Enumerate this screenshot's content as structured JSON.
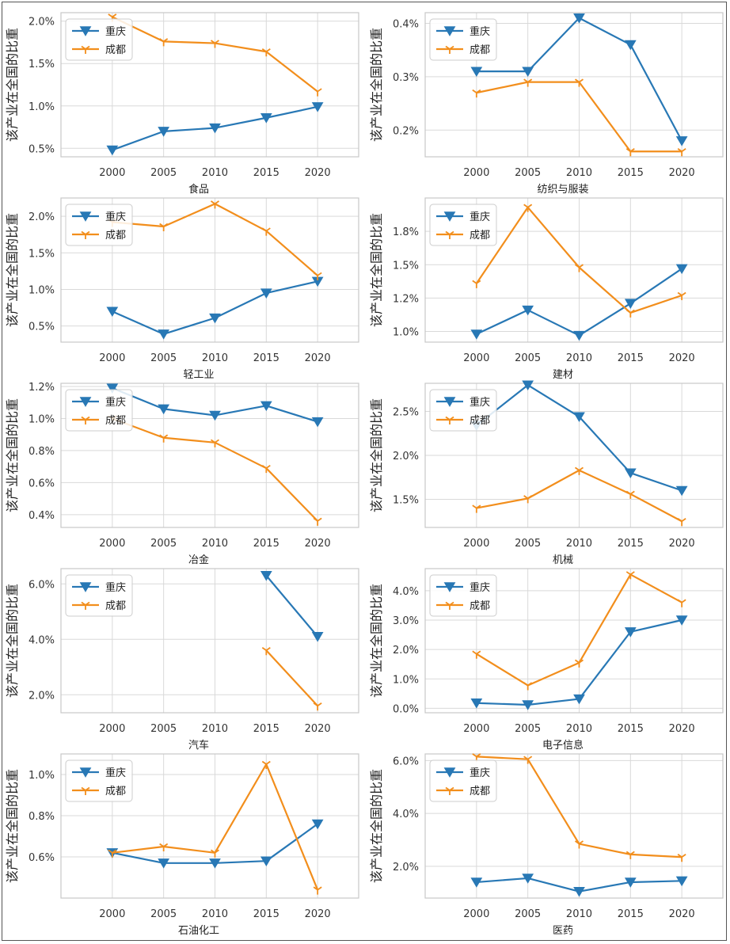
{
  "colors": {
    "chongqing": "#2878b5",
    "chengdu": "#f28e1c",
    "grid": "#d9d9d9",
    "frame": "#c8c8c8"
  },
  "chart_data": [
    {
      "type": "line",
      "title": "",
      "xlabel": "食品",
      "ylabel": "该产业在全国的比重",
      "x": [
        2000,
        2005,
        2010,
        2015,
        2020
      ],
      "ylim": [
        0.4,
        2.1
      ],
      "yticks": [
        0.5,
        1.0,
        1.5,
        2.0
      ],
      "ytick_labels": [
        "0.5%",
        "1.0%",
        "1.5%",
        "2.0%"
      ],
      "legend": "upper-left",
      "series": [
        {
          "name": "重庆",
          "values": [
            0.48,
            0.7,
            0.74,
            0.86,
            0.99
          ]
        },
        {
          "name": "成都",
          "values": [
            2.05,
            1.76,
            1.74,
            1.64,
            1.17
          ]
        }
      ]
    },
    {
      "type": "line",
      "title": "",
      "xlabel": "纺织与服装",
      "ylabel": "该产业在全国的比重",
      "x": [
        2000,
        2005,
        2010,
        2015,
        2020
      ],
      "ylim": [
        0.15,
        0.42
      ],
      "yticks": [
        0.2,
        0.3,
        0.4
      ],
      "ytick_labels": [
        "0.2%",
        "0.3%",
        "0.4%"
      ],
      "legend": "upper-left",
      "series": [
        {
          "name": "重庆",
          "values": [
            0.31,
            0.31,
            0.41,
            0.36,
            0.18
          ]
        },
        {
          "name": "成都",
          "values": [
            0.27,
            0.29,
            0.29,
            0.16,
            0.16
          ]
        }
      ]
    },
    {
      "type": "line",
      "title": "",
      "xlabel": "轻工业",
      "ylabel": "该产业在全国的比重",
      "x": [
        2000,
        2005,
        2010,
        2015,
        2020
      ],
      "ylim": [
        0.28,
        2.25
      ],
      "yticks": [
        0.5,
        1.0,
        1.5,
        2.0
      ],
      "ytick_labels": [
        "0.5%",
        "1.0%",
        "1.5%",
        "2.0%"
      ],
      "legend": "upper-left",
      "series": [
        {
          "name": "重庆",
          "values": [
            0.7,
            0.39,
            0.61,
            0.95,
            1.11
          ]
        },
        {
          "name": "成都",
          "values": [
            1.92,
            1.86,
            2.17,
            1.8,
            1.19
          ]
        }
      ]
    },
    {
      "type": "line",
      "title": "",
      "xlabel": "建材",
      "ylabel": "该产业在全国的比重",
      "x": [
        2000,
        2005,
        2010,
        2015,
        2020
      ],
      "ylim": [
        0.92,
        2.0
      ],
      "yticks": [
        1.0,
        1.25,
        1.5,
        1.75
      ],
      "ytick_labels": [
        "1.0%",
        "1.2%",
        "1.5%",
        "1.8%"
      ],
      "legend": "upper-left",
      "series": [
        {
          "name": "重庆",
          "values": [
            0.98,
            1.16,
            0.97,
            1.21,
            1.47
          ]
        },
        {
          "name": "成都",
          "values": [
            1.36,
            1.93,
            1.48,
            1.14,
            1.27
          ]
        }
      ]
    },
    {
      "type": "line",
      "title": "",
      "xlabel": "冶金",
      "ylabel": "该产业在全国的比重",
      "x": [
        2000,
        2005,
        2010,
        2015,
        2020
      ],
      "ylim": [
        0.32,
        1.22
      ],
      "yticks": [
        0.4,
        0.6,
        0.8,
        1.0,
        1.2
      ],
      "ytick_labels": [
        "0.4%",
        "0.6%",
        "0.8%",
        "1.0%",
        "1.2%"
      ],
      "legend": "upper-left",
      "series": [
        {
          "name": "重庆",
          "values": [
            1.19,
            1.06,
            1.02,
            1.08,
            0.98
          ]
        },
        {
          "name": "成都",
          "values": [
            1.0,
            0.88,
            0.85,
            0.69,
            0.36
          ]
        }
      ]
    },
    {
      "type": "line",
      "title": "",
      "xlabel": "机械",
      "ylabel": "该产业在全国的比重",
      "x": [
        2000,
        2005,
        2010,
        2015,
        2020
      ],
      "ylim": [
        1.18,
        2.82
      ],
      "yticks": [
        1.5,
        2.0,
        2.5
      ],
      "ytick_labels": [
        "1.5%",
        "2.0%",
        "2.5%"
      ],
      "legend": "upper-left",
      "series": [
        {
          "name": "重庆",
          "values": [
            2.34,
            2.8,
            2.44,
            1.8,
            1.6
          ]
        },
        {
          "name": "成都",
          "values": [
            1.4,
            1.51,
            1.83,
            1.56,
            1.25
          ]
        }
      ]
    },
    {
      "type": "line",
      "title": "",
      "xlabel": "汽车",
      "ylabel": "该产业在全国的比重",
      "x": [
        2000,
        2005,
        2010,
        2015,
        2020
      ],
      "ylim": [
        1.35,
        6.55
      ],
      "yticks": [
        2.0,
        4.0,
        6.0
      ],
      "ytick_labels": [
        "2.0%",
        "4.0%",
        "6.0%"
      ],
      "legend": "upper-left",
      "series": [
        {
          "name": "重庆",
          "values": [
            null,
            null,
            null,
            6.3,
            4.1
          ]
        },
        {
          "name": "成都",
          "values": [
            null,
            null,
            null,
            3.6,
            1.6
          ]
        }
      ]
    },
    {
      "type": "line",
      "title": "",
      "xlabel": "电子信息",
      "ylabel": "该产业在全国的比重",
      "x": [
        2000,
        2005,
        2010,
        2015,
        2020
      ],
      "ylim": [
        -0.15,
        4.75
      ],
      "yticks": [
        0.0,
        1.0,
        2.0,
        3.0,
        4.0
      ],
      "ytick_labels": [
        "0.0%",
        "1.0%",
        "2.0%",
        "3.0%",
        "4.0%"
      ],
      "legend": "upper-left",
      "series": [
        {
          "name": "重庆",
          "values": [
            0.18,
            0.12,
            0.32,
            2.6,
            3.0
          ]
        },
        {
          "name": "成都",
          "values": [
            1.85,
            0.78,
            1.55,
            4.55,
            3.6
          ]
        }
      ]
    },
    {
      "type": "line",
      "title": "",
      "xlabel": "石油化工",
      "ylabel": "该产业在全国的比重",
      "x": [
        2000,
        2005,
        2010,
        2015,
        2020
      ],
      "ylim": [
        0.4,
        1.1
      ],
      "yticks": [
        0.6,
        0.8,
        1.0
      ],
      "ytick_labels": [
        "0.6%",
        "0.8%",
        "1.0%"
      ],
      "legend": "upper-left",
      "series": [
        {
          "name": "重庆",
          "values": [
            0.62,
            0.57,
            0.57,
            0.58,
            0.76
          ]
        },
        {
          "name": "成都",
          "values": [
            0.62,
            0.65,
            0.62,
            1.05,
            0.44
          ]
        }
      ]
    },
    {
      "type": "line",
      "title": "",
      "xlabel": "医药",
      "ylabel": "该产业在全国的比重",
      "x": [
        2000,
        2005,
        2010,
        2015,
        2020
      ],
      "ylim": [
        0.8,
        6.25
      ],
      "yticks": [
        2.0,
        4.0,
        6.0
      ],
      "ytick_labels": [
        "2.0%",
        "4.0%",
        "6.0%"
      ],
      "legend": "upper-left",
      "series": [
        {
          "name": "重庆",
          "values": [
            1.4,
            1.55,
            1.05,
            1.4,
            1.45
          ]
        },
        {
          "name": "成都",
          "values": [
            6.15,
            6.05,
            2.85,
            2.45,
            2.35
          ]
        }
      ]
    }
  ]
}
